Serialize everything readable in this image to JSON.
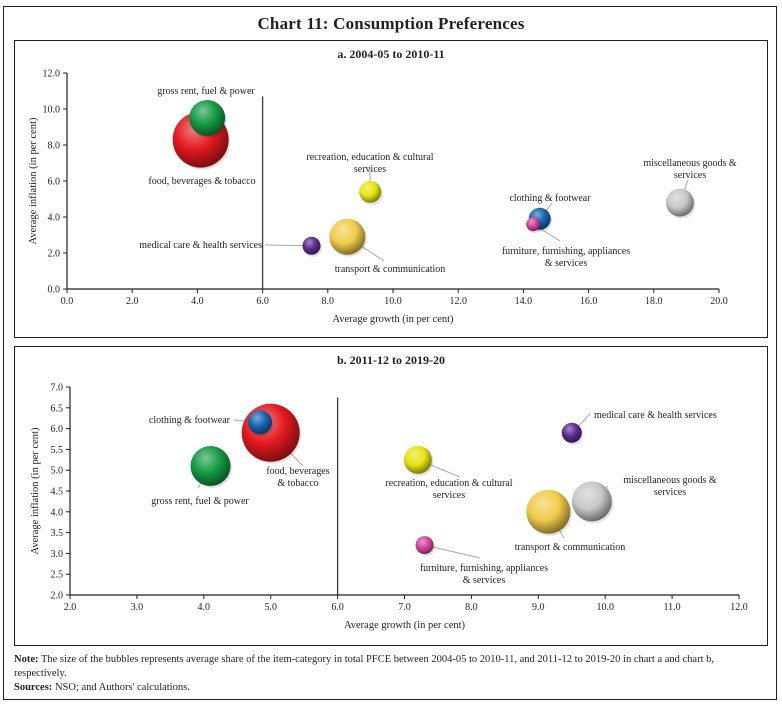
{
  "title": "Chart 11: Consumption Preferences",
  "note_label": "Note:",
  "note_text": "The size of the bubbles represents average share of the item-category in total PFCE between 2004-05 to 2010-11, and 2011-12 to 2019-20 in chart a and chart b, respectively.",
  "sources_label": "Sources:",
  "sources_text": "NSO; and Authors' calculations.",
  "chart_data": [
    {
      "type": "scatter",
      "subtype": "bubble",
      "title": "a. 2004-05 to 2010-11",
      "xlabel": "Average growth (in per cent)",
      "ylabel": "Average inflation (in per cent)",
      "xlim": [
        0,
        20
      ],
      "ylim": [
        0,
        12
      ],
      "xticks": [
        "0.0",
        "2.0",
        "4.0",
        "6.0",
        "8.0",
        "10.0",
        "12.0",
        "14.0",
        "16.0",
        "18.0",
        "20.0"
      ],
      "yticks": [
        "0.0",
        "2.0",
        "4.0",
        "6.0",
        "8.0",
        "10.0",
        "12.0"
      ],
      "xtick_values": [
        0,
        2,
        4,
        6,
        8,
        10,
        12,
        14,
        16,
        18,
        20
      ],
      "ytick_values": [
        0,
        2,
        4,
        6,
        8,
        10,
        12
      ],
      "grid": false,
      "reference_line": {
        "x": 6.0,
        "y_from": 0,
        "y_to": 10.7
      },
      "points": [
        {
          "name": "food, beverages & tobacco",
          "label_lines": [
            "food, beverages & tobacco"
          ],
          "x": 4.1,
          "y": 8.3,
          "size": 28,
          "color": "#e3191f"
        },
        {
          "name": "gross rent, fuel & power",
          "label_lines": [
            "gross rent, fuel & power"
          ],
          "x": 4.3,
          "y": 9.5,
          "size": 18,
          "color": "#139a43"
        },
        {
          "name": "recreation, education & cultural services",
          "label_lines": [
            "recreation, education & cultural",
            "services"
          ],
          "x": 9.3,
          "y": 5.4,
          "size": 11,
          "color": "#e8e410"
        },
        {
          "name": "transport & communication",
          "label_lines": [
            "transport & communication"
          ],
          "x": 8.6,
          "y": 2.9,
          "size": 18,
          "color": "#f0cc4a"
        },
        {
          "name": "medical care & health services",
          "label_lines": [
            "medical care & health services"
          ],
          "x": 7.5,
          "y": 2.4,
          "size": 9,
          "color": "#5c2a91"
        },
        {
          "name": "clothing & footwear",
          "label_lines": [
            "clothing & footwear"
          ],
          "x": 14.5,
          "y": 3.9,
          "size": 11,
          "color": "#1465b0"
        },
        {
          "name": "furniture, furnishing, appliances & services",
          "label_lines": [
            "furniture, furnishing, appliances",
            "& services"
          ],
          "x": 14.3,
          "y": 3.6,
          "size": 7,
          "color": "#d0449c"
        },
        {
          "name": "miscellaneous goods & services",
          "label_lines": [
            "miscellaneous  goods &",
            "services"
          ],
          "x": 18.8,
          "y": 4.8,
          "size": 14,
          "color": "#c8c8c8"
        }
      ]
    },
    {
      "type": "scatter",
      "subtype": "bubble",
      "title": "b. 2011-12 to 2019-20",
      "xlabel": "Average growth (in per cent)",
      "ylabel": "Average inflation (in per cent)",
      "xlim": [
        2,
        12
      ],
      "ylim": [
        2,
        7
      ],
      "xticks": [
        "2.0",
        "3.0",
        "4.0",
        "5.0",
        "6.0",
        "7.0",
        "8.0",
        "9.0",
        "10.0",
        "11.0",
        "12.0"
      ],
      "yticks": [
        "2.0",
        "2.5",
        "3.0",
        "3.5",
        "4.0",
        "4.5",
        "5.0",
        "5.5",
        "6.0",
        "6.5",
        "7.0"
      ],
      "xtick_values": [
        2,
        3,
        4,
        5,
        6,
        7,
        8,
        9,
        10,
        11,
        12
      ],
      "ytick_values": [
        2,
        2.5,
        3,
        3.5,
        4,
        4.5,
        5,
        5.5,
        6,
        6.5,
        7
      ],
      "grid": false,
      "reference_line": {
        "x": 6.0,
        "y_from": 2,
        "y_to": 6.75
      },
      "points": [
        {
          "name": "food, beverages & tobacco",
          "label_lines": [
            "food, beverages",
            "& tobacco"
          ],
          "x": 5.0,
          "y": 5.9,
          "size": 29,
          "color": "#e3191f"
        },
        {
          "name": "clothing & footwear",
          "label_lines": [
            "clothing & footwear"
          ],
          "x": 4.84,
          "y": 6.15,
          "size": 12,
          "color": "#1465b0"
        },
        {
          "name": "gross rent, fuel & power",
          "label_lines": [
            "gross rent, fuel & power"
          ],
          "x": 4.1,
          "y": 5.1,
          "size": 20,
          "color": "#139a43"
        },
        {
          "name": "medical care & health services",
          "label_lines": [
            "medical care & health services"
          ],
          "x": 9.5,
          "y": 5.9,
          "size": 10,
          "color": "#5c2a91"
        },
        {
          "name": "recreation, education & cultural services",
          "label_lines": [
            "recreation, education & cultural",
            "services"
          ],
          "x": 7.2,
          "y": 5.25,
          "size": 14,
          "color": "#e8e410"
        },
        {
          "name": "miscellaneous goods & services",
          "label_lines": [
            "miscellaneous  goods &",
            "services"
          ],
          "x": 9.8,
          "y": 4.25,
          "size": 20,
          "color": "#c8c8c8"
        },
        {
          "name": "transport & communication",
          "label_lines": [
            "transport & communication"
          ],
          "x": 9.15,
          "y": 4.0,
          "size": 22,
          "color": "#f0cc4a"
        },
        {
          "name": "furniture, furnishing, appliances & services",
          "label_lines": [
            "furniture, furnishing, appliances",
            "& services"
          ],
          "x": 7.3,
          "y": 3.2,
          "size": 9,
          "color": "#d0449c"
        }
      ]
    }
  ]
}
